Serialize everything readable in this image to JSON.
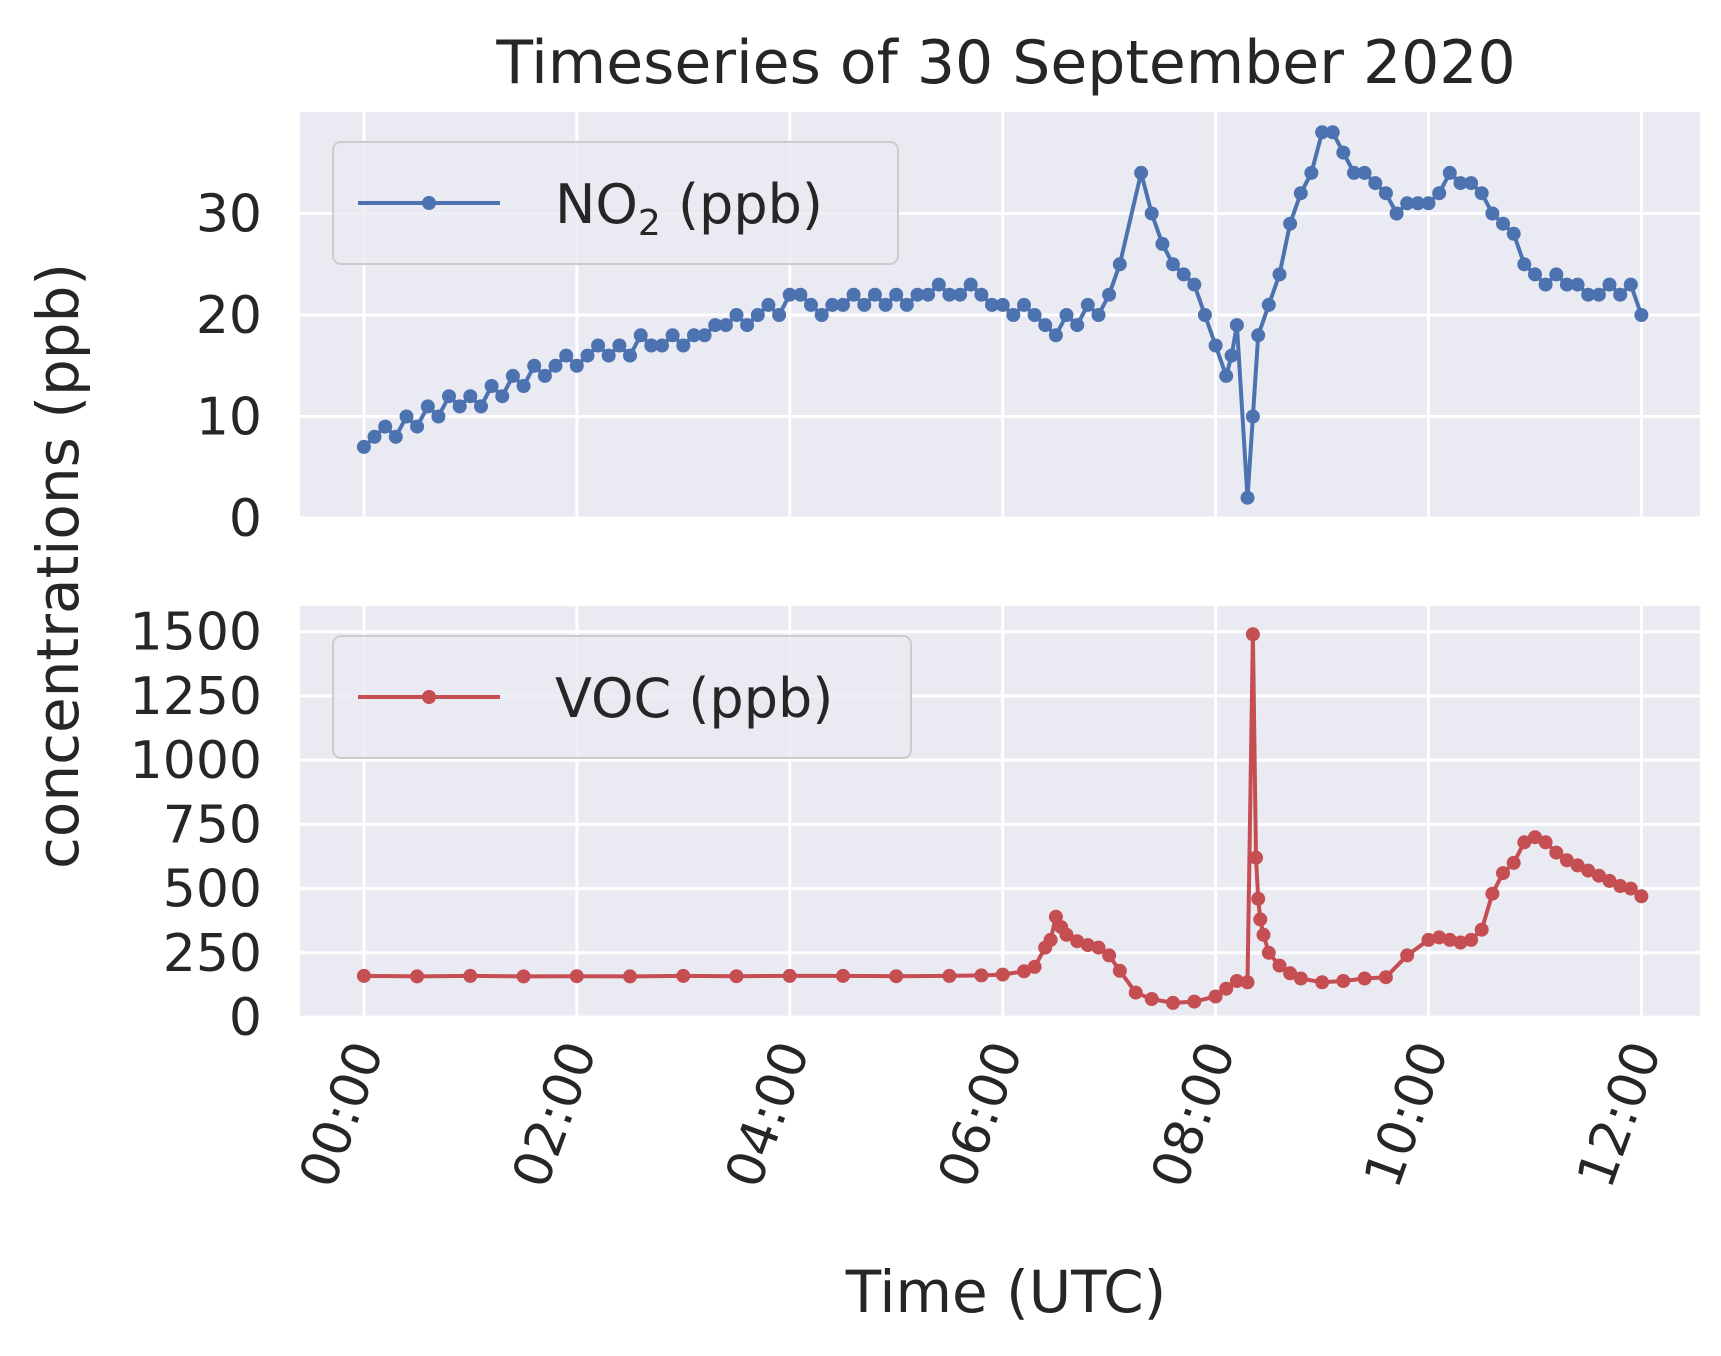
{
  "chart_data": {
    "type": "line",
    "title": "Timeseries of 30 September 2020",
    "xlabel": "Time (UTC)",
    "ylabel": "concentrations (ppb)",
    "x_tick_labels": [
      "00:00",
      "02:00",
      "04:00",
      "06:00",
      "08:00",
      "10:00",
      "12:00"
    ],
    "x_range_hours": [
      -0.6,
      12.55
    ],
    "grid": true,
    "legend_placement": "upper-left",
    "panels": [
      {
        "id": "no2",
        "legend_label": "NO",
        "legend_sub": "2",
        "legend_suffix": " (ppb)",
        "color": "#4C72B0",
        "ylim": [
          0,
          40
        ],
        "yticks": [
          0,
          10,
          20,
          30
        ],
        "series": [
          {
            "name": "NO2 (ppb)",
            "x_hours": [
              0,
              0.1,
              0.2,
              0.3,
              0.4,
              0.5,
              0.6,
              0.7,
              0.8,
              0.9,
              1.0,
              1.1,
              1.2,
              1.3,
              1.4,
              1.5,
              1.6,
              1.7,
              1.8,
              1.9,
              2.0,
              2.1,
              2.2,
              2.3,
              2.4,
              2.5,
              2.6,
              2.7,
              2.8,
              2.9,
              3.0,
              3.1,
              3.2,
              3.3,
              3.4,
              3.5,
              3.6,
              3.7,
              3.8,
              3.9,
              4.0,
              4.1,
              4.2,
              4.3,
              4.4,
              4.5,
              4.6,
              4.7,
              4.8,
              4.9,
              5.0,
              5.1,
              5.2,
              5.3,
              5.4,
              5.5,
              5.6,
              5.7,
              5.8,
              5.9,
              6.0,
              6.1,
              6.2,
              6.3,
              6.4,
              6.5,
              6.6,
              6.7,
              6.8,
              6.9,
              7.0,
              7.1,
              7.3,
              7.4,
              7.5,
              7.6,
              7.7,
              7.8,
              7.9,
              8.0,
              8.1,
              8.15,
              8.2,
              8.3,
              8.35,
              8.4,
              8.5,
              8.6,
              8.7,
              8.8,
              8.9,
              9.0,
              9.1,
              9.2,
              9.3,
              9.4,
              9.5,
              9.6,
              9.7,
              9.8,
              9.9,
              10.0,
              10.1,
              10.2,
              10.3,
              10.4,
              10.5,
              10.6,
              10.7,
              10.8,
              10.9,
              11.0,
              11.1,
              11.2,
              11.3,
              11.4,
              11.5,
              11.6,
              11.7,
              11.8,
              11.9,
              12.0
            ],
            "values": [
              7,
              8,
              9,
              8,
              10,
              9,
              11,
              10,
              12,
              11,
              12,
              11,
              13,
              12,
              14,
              13,
              15,
              14,
              15,
              16,
              15,
              16,
              17,
              16,
              17,
              16,
              18,
              17,
              17,
              18,
              17,
              18,
              18,
              19,
              19,
              20,
              19,
              20,
              21,
              20,
              22,
              22,
              21,
              20,
              21,
              21,
              22,
              21,
              22,
              21,
              22,
              21,
              22,
              22,
              23,
              22,
              22,
              23,
              22,
              21,
              21,
              20,
              21,
              20,
              19,
              18,
              20,
              19,
              21,
              20,
              22,
              25,
              34,
              30,
              27,
              25,
              24,
              23,
              20,
              17,
              14,
              16,
              19,
              2,
              10,
              18,
              21,
              24,
              29,
              32,
              34,
              38,
              38,
              36,
              34,
              34,
              33,
              32,
              30,
              31,
              31,
              31,
              32,
              34,
              33,
              33,
              32,
              30,
              29,
              28,
              25,
              24,
              23,
              24,
              23,
              23,
              22,
              22,
              23,
              22,
              23,
              20
            ]
          }
        ]
      },
      {
        "id": "voc",
        "legend_label": "VOC (ppb)",
        "color": "#C44E52",
        "ylim": [
          0,
          1600
        ],
        "yticks": [
          0,
          250,
          500,
          750,
          1000,
          1250,
          1500
        ],
        "series": [
          {
            "name": "VOC (ppb)",
            "x_hours": [
              0,
              0.5,
              1.0,
              1.5,
              2.0,
              2.5,
              3.0,
              3.5,
              4.0,
              4.5,
              5.0,
              5.5,
              5.8,
              6.0,
              6.2,
              6.3,
              6.4,
              6.45,
              6.5,
              6.55,
              6.6,
              6.7,
              6.8,
              6.9,
              7.0,
              7.1,
              7.25,
              7.4,
              7.6,
              7.8,
              8.0,
              8.1,
              8.2,
              8.3,
              8.35,
              8.38,
              8.4,
              8.42,
              8.45,
              8.5,
              8.6,
              8.7,
              8.8,
              9.0,
              9.2,
              9.4,
              9.6,
              9.8,
              10.0,
              10.1,
              10.2,
              10.3,
              10.4,
              10.5,
              10.6,
              10.7,
              10.8,
              10.9,
              11.0,
              11.1,
              11.2,
              11.3,
              11.4,
              11.5,
              11.6,
              11.7,
              11.8,
              11.9,
              12.0
            ],
            "values": [
              160,
              158,
              160,
              158,
              159,
              158,
              160,
              159,
              160,
              160,
              159,
              160,
              162,
              165,
              178,
              195,
              270,
              300,
              390,
              350,
              320,
              295,
              280,
              270,
              240,
              180,
              95,
              70,
              55,
              60,
              80,
              110,
              140,
              135,
              1490,
              620,
              460,
              380,
              320,
              250,
              200,
              170,
              150,
              135,
              140,
              150,
              155,
              240,
              300,
              310,
              300,
              290,
              300,
              340,
              480,
              560,
              600,
              680,
              700,
              680,
              640,
              610,
              590,
              570,
              550,
              530,
              510,
              500,
              470
            ]
          }
        ]
      }
    ]
  }
}
